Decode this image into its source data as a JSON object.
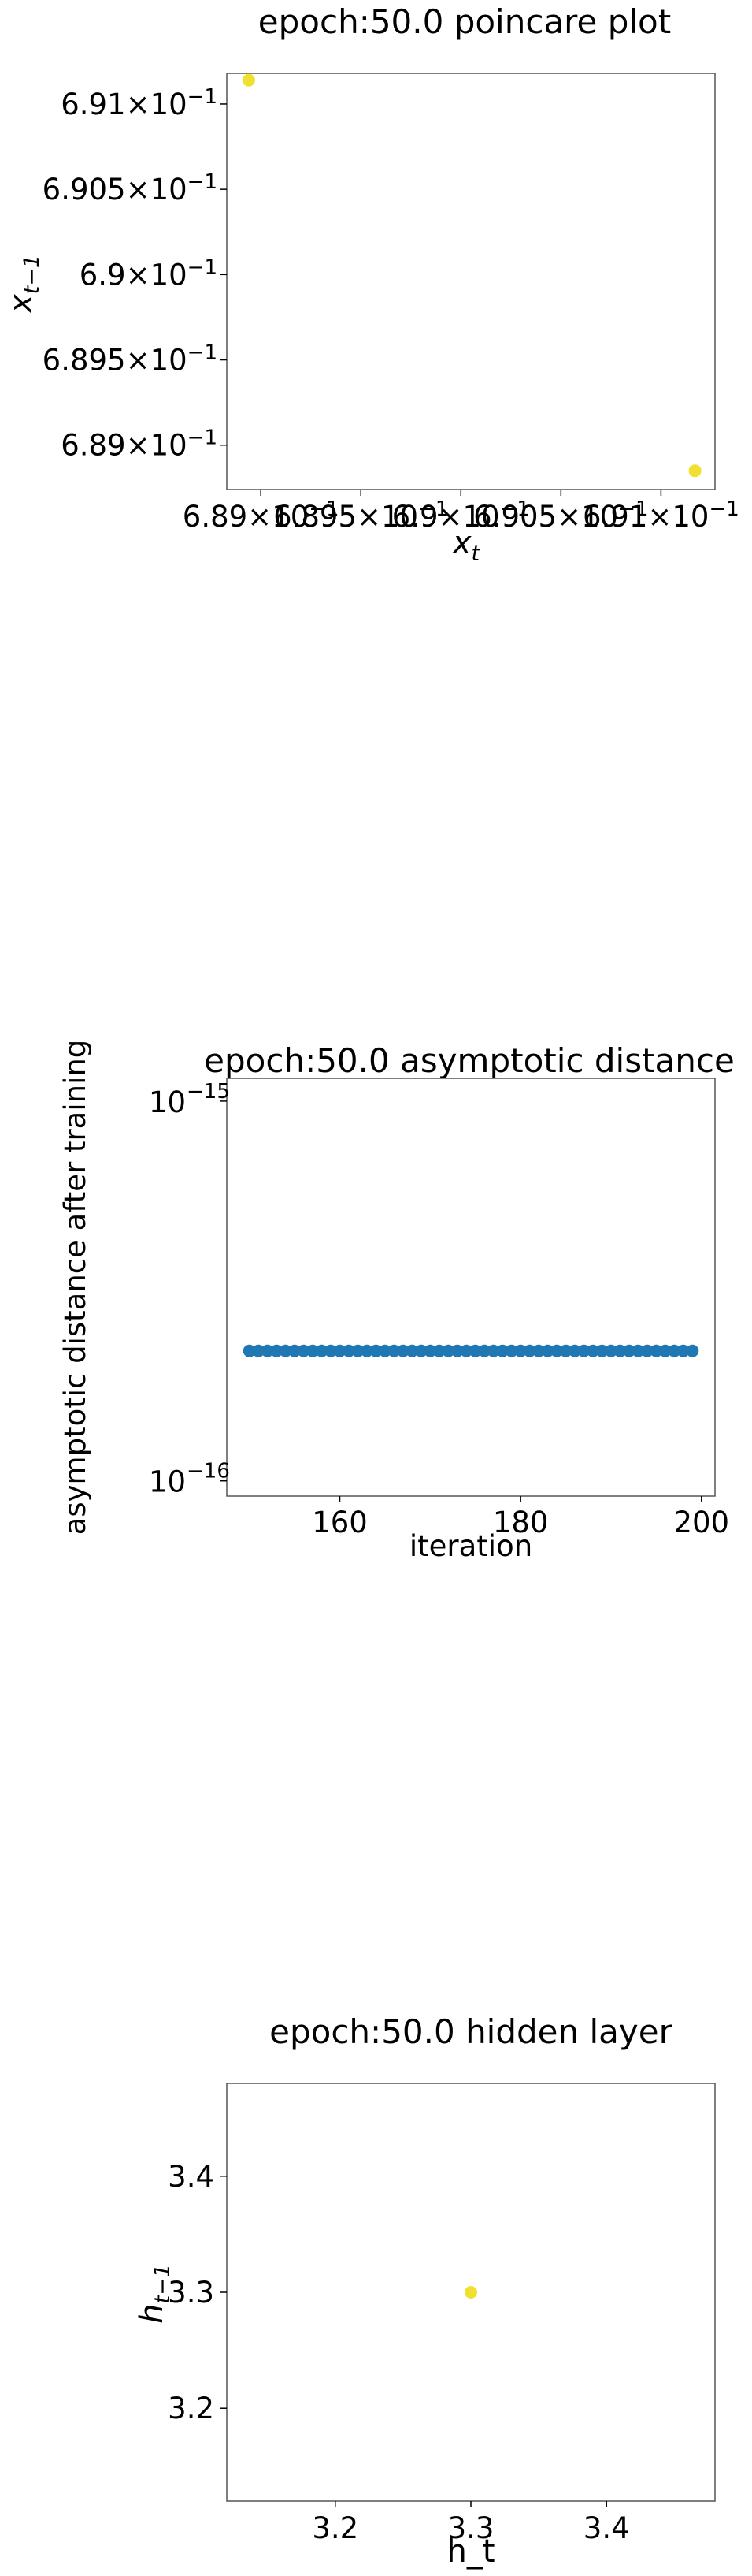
{
  "chart_data": [
    {
      "type": "scatter",
      "title": "epoch:50.0 poincare plot",
      "xlabel": "x_t",
      "ylabel": "x_{t-1}",
      "xlim": [
        0.68883,
        0.69127
      ],
      "ylim": [
        0.68874,
        0.69118
      ],
      "scale": "log",
      "xticks": [
        {
          "value": 0.689,
          "mantissa": "6.89"
        },
        {
          "value": 0.6895,
          "mantissa": "6.895"
        },
        {
          "value": 0.69,
          "mantissa": "6.9"
        },
        {
          "value": 0.6905,
          "mantissa": "6.905"
        },
        {
          "value": 0.691,
          "mantissa": "6.91"
        }
      ],
      "yticks": [
        {
          "value": 0.689,
          "mantissa": "6.89"
        },
        {
          "value": 0.6895,
          "mantissa": "6.895"
        },
        {
          "value": 0.69,
          "mantissa": "6.9"
        },
        {
          "value": 0.6905,
          "mantissa": "6.905"
        },
        {
          "value": 0.691,
          "mantissa": "6.91"
        }
      ],
      "tick_base": "10",
      "tick_exp": "−1",
      "points": [
        {
          "x": 0.68894,
          "y": 0.69114
        },
        {
          "x": 0.69117,
          "y": 0.68885
        }
      ],
      "color": "#f0e130"
    },
    {
      "type": "scatter",
      "title": "epoch:50.0 asymptotic distance",
      "xlabel": "iteration",
      "ylabel": "asymptotic distance after training",
      "xlim": [
        147.5,
        201.5
      ],
      "ylim_log10": [
        -16.04,
        -14.94
      ],
      "scale": "log",
      "xticks": [
        160,
        180,
        200
      ],
      "yticks": [
        {
          "value": 1e-15,
          "exp": "−15"
        },
        {
          "value": 1e-16,
          "exp": "−16"
        }
      ],
      "tick_base": "10",
      "x_start": 150,
      "x_end": 199,
      "y_value": 2.2e-16,
      "color": "#1f77b4"
    },
    {
      "type": "scatter",
      "title": "epoch:50.0 hidden layer",
      "xlabel": "h_t",
      "ylabel": "h_{t-1}",
      "xlim": [
        3.12,
        3.48
      ],
      "ylim": [
        3.12,
        3.48
      ],
      "xticks": [
        "3.2",
        "3.3",
        "3.4"
      ],
      "yticks": [
        "3.2",
        "3.3",
        "3.4"
      ],
      "points": [
        {
          "x": 3.3,
          "y": 3.3
        }
      ],
      "color": "#f0e130"
    }
  ]
}
